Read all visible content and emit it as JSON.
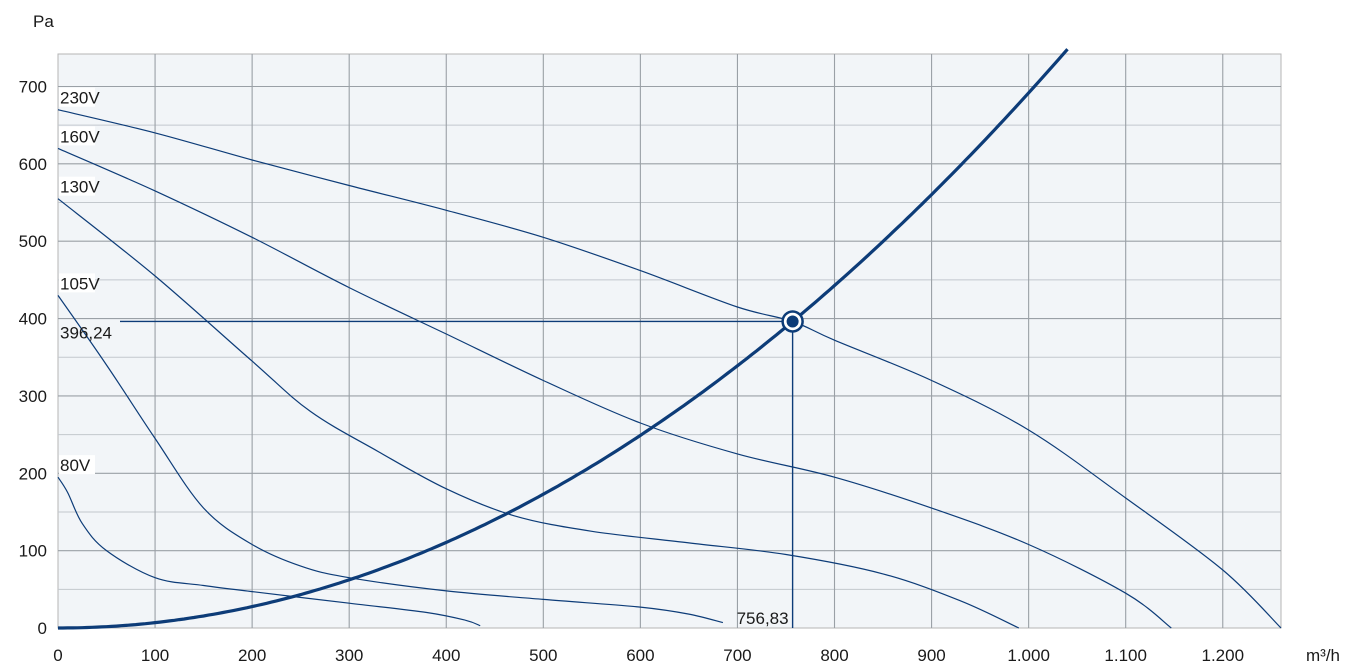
{
  "chart_data": {
    "type": "line",
    "x_unit": "m³/h",
    "y_unit": "Pa",
    "xlim": [
      0,
      1260
    ],
    "ylim": [
      0,
      750
    ],
    "x_ticks": [
      {
        "v": 0,
        "label": "0"
      },
      {
        "v": 100,
        "label": "100"
      },
      {
        "v": 200,
        "label": "200"
      },
      {
        "v": 300,
        "label": "300"
      },
      {
        "v": 400,
        "label": "400"
      },
      {
        "v": 500,
        "label": "500"
      },
      {
        "v": 600,
        "label": "600"
      },
      {
        "v": 700,
        "label": "700"
      },
      {
        "v": 800,
        "label": "800"
      },
      {
        "v": 900,
        "label": "900"
      },
      {
        "v": 1000,
        "label": "1.000"
      },
      {
        "v": 1100,
        "label": "1.100"
      },
      {
        "v": 1200,
        "label": "1.200"
      }
    ],
    "y_ticks": [
      {
        "v": 0,
        "label": "0"
      },
      {
        "v": 100,
        "label": "100"
      },
      {
        "v": 200,
        "label": "200"
      },
      {
        "v": 300,
        "label": "300"
      },
      {
        "v": 400,
        "label": "400"
      },
      {
        "v": 500,
        "label": "500"
      },
      {
        "v": 600,
        "label": "600"
      },
      {
        "v": 700,
        "label": "700"
      }
    ],
    "grid": true,
    "colors": {
      "plot_bg": "#f2f5f8",
      "grid": "#9aa0a6",
      "curve": "#0d3c78",
      "system_curve": "#0d3c78",
      "border": "#b5b5b5"
    },
    "series": [
      {
        "name": "230V",
        "points": [
          [
            0,
            670
          ],
          [
            100,
            640
          ],
          [
            200,
            605
          ],
          [
            300,
            572
          ],
          [
            400,
            540
          ],
          [
            500,
            505
          ],
          [
            600,
            462
          ],
          [
            700,
            415
          ],
          [
            756.83,
            396.24
          ],
          [
            800,
            372
          ],
          [
            900,
            320
          ],
          [
            1000,
            256
          ],
          [
            1100,
            168
          ],
          [
            1200,
            75
          ],
          [
            1260,
            0
          ]
        ]
      },
      {
        "name": "160V",
        "points": [
          [
            0,
            620
          ],
          [
            100,
            565
          ],
          [
            200,
            505
          ],
          [
            300,
            440
          ],
          [
            400,
            380
          ],
          [
            500,
            320
          ],
          [
            600,
            265
          ],
          [
            700,
            225
          ],
          [
            800,
            195
          ],
          [
            900,
            155
          ],
          [
            1000,
            108
          ],
          [
            1100,
            45
          ],
          [
            1147,
            0
          ]
        ]
      },
      {
        "name": "130V",
        "points": [
          [
            0,
            555
          ],
          [
            100,
            455
          ],
          [
            200,
            345
          ],
          [
            260,
            280
          ],
          [
            330,
            228
          ],
          [
            400,
            180
          ],
          [
            470,
            145
          ],
          [
            550,
            125
          ],
          [
            650,
            110
          ],
          [
            750,
            95
          ],
          [
            850,
            70
          ],
          [
            930,
            35
          ],
          [
            990,
            0
          ]
        ]
      },
      {
        "name": "105V",
        "points": [
          [
            0,
            430
          ],
          [
            50,
            340
          ],
          [
            100,
            245
          ],
          [
            150,
            155
          ],
          [
            200,
            108
          ],
          [
            250,
            80
          ],
          [
            300,
            65
          ],
          [
            400,
            48
          ],
          [
            500,
            37
          ],
          [
            600,
            27
          ],
          [
            650,
            18
          ],
          [
            685,
            7
          ]
        ]
      },
      {
        "name": "80V",
        "points": [
          [
            0,
            195
          ],
          [
            10,
            175
          ],
          [
            25,
            135
          ],
          [
            50,
            100
          ],
          [
            100,
            65
          ],
          [
            150,
            55
          ],
          [
            200,
            47
          ],
          [
            300,
            32
          ],
          [
            380,
            20
          ],
          [
            420,
            10
          ],
          [
            435,
            3
          ]
        ]
      }
    ],
    "system_curve": {
      "k": 0.000691716
    },
    "operating_point": {
      "x": 756.83,
      "y": 396.24,
      "x_label": "756,83",
      "y_label": "396,24"
    }
  }
}
